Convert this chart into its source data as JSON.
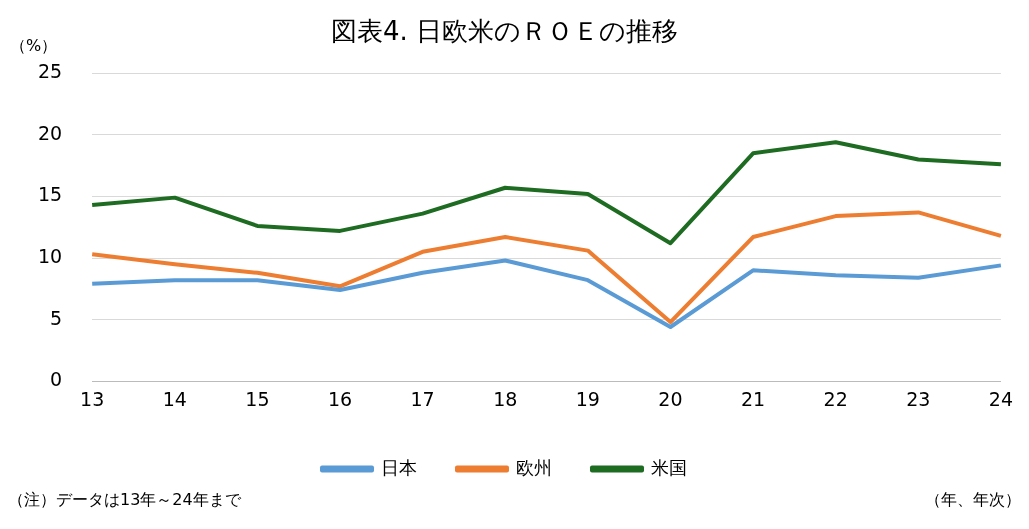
{
  "chart_data": {
    "type": "line",
    "title": "図表4. 日欧米のＲＯＥの推移",
    "ylabel": "（%）",
    "categories": [
      "13",
      "14",
      "15",
      "16",
      "17",
      "18",
      "19",
      "20",
      "21",
      "22",
      "23",
      "24"
    ],
    "series": [
      {
        "name": "日本",
        "color": "#5b9bd5",
        "values": [
          7.9,
          8.2,
          8.2,
          7.4,
          8.8,
          9.8,
          8.2,
          4.4,
          9.0,
          8.6,
          8.4,
          9.4
        ]
      },
      {
        "name": "欧州",
        "color": "#ed7d31",
        "values": [
          10.3,
          9.5,
          8.8,
          7.7,
          10.5,
          11.7,
          10.6,
          4.8,
          11.7,
          13.4,
          13.7,
          11.8
        ]
      },
      {
        "name": "米国",
        "color": "#1e6b22",
        "values": [
          14.3,
          14.9,
          12.6,
          12.2,
          13.6,
          15.7,
          15.2,
          11.2,
          18.5,
          19.4,
          18.0,
          17.6
        ]
      }
    ],
    "ylim": [
      0,
      25
    ],
    "yticks": [
      0,
      5,
      10,
      15,
      20,
      25
    ],
    "grid": "y",
    "legend": "bottom",
    "marker": "none",
    "line_style": "solid",
    "annotations": [
      "（注）データは13年～24年まで",
      "（年、年次）"
    ]
  }
}
